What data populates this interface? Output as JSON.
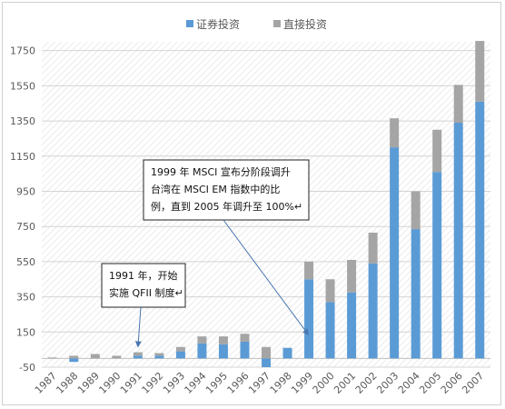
{
  "chart_data": {
    "type": "bar",
    "stacked": true,
    "categories": [
      "1987",
      "1988",
      "1989",
      "1990",
      "1991",
      "1992",
      "1993",
      "1994",
      "1995",
      "1996",
      "1997",
      "1998",
      "1999",
      "2000",
      "2001",
      "2002",
      "2003",
      "2004",
      "2005",
      "2006",
      "2007"
    ],
    "series": [
      {
        "name": "证券投资",
        "color": "#5b9bd5",
        "values": [
          0,
          -20,
          0,
          0,
          15,
          15,
          40,
          85,
          80,
          95,
          -50,
          60,
          450,
          320,
          375,
          540,
          1200,
          735,
          1060,
          1340,
          1460
        ]
      },
      {
        "name": "直接投资",
        "color": "#a5a5a5",
        "values": [
          5,
          15,
          25,
          15,
          20,
          15,
          25,
          40,
          45,
          45,
          65,
          0,
          100,
          130,
          185,
          175,
          165,
          215,
          240,
          215,
          345
        ]
      }
    ],
    "ylim": [
      -50,
      1800
    ],
    "yticks": [
      -50,
      150,
      350,
      550,
      750,
      950,
      1150,
      1350,
      1550,
      1750
    ],
    "grid": "horizontal",
    "legend": "top-center",
    "annotations": [
      {
        "lines": [
          "1999 年  MSCI 宣布分阶段调升",
          "台湾在  MSCI  EM  指数中的比",
          "例，直到 2005 年调升至 100%↵"
        ],
        "target_category": "1999",
        "target_value": 100
      },
      {
        "lines": [
          "1991 年，开始",
          "实施 QFII 制度↵"
        ],
        "target_category": "1991",
        "target_value": 30
      }
    ]
  }
}
